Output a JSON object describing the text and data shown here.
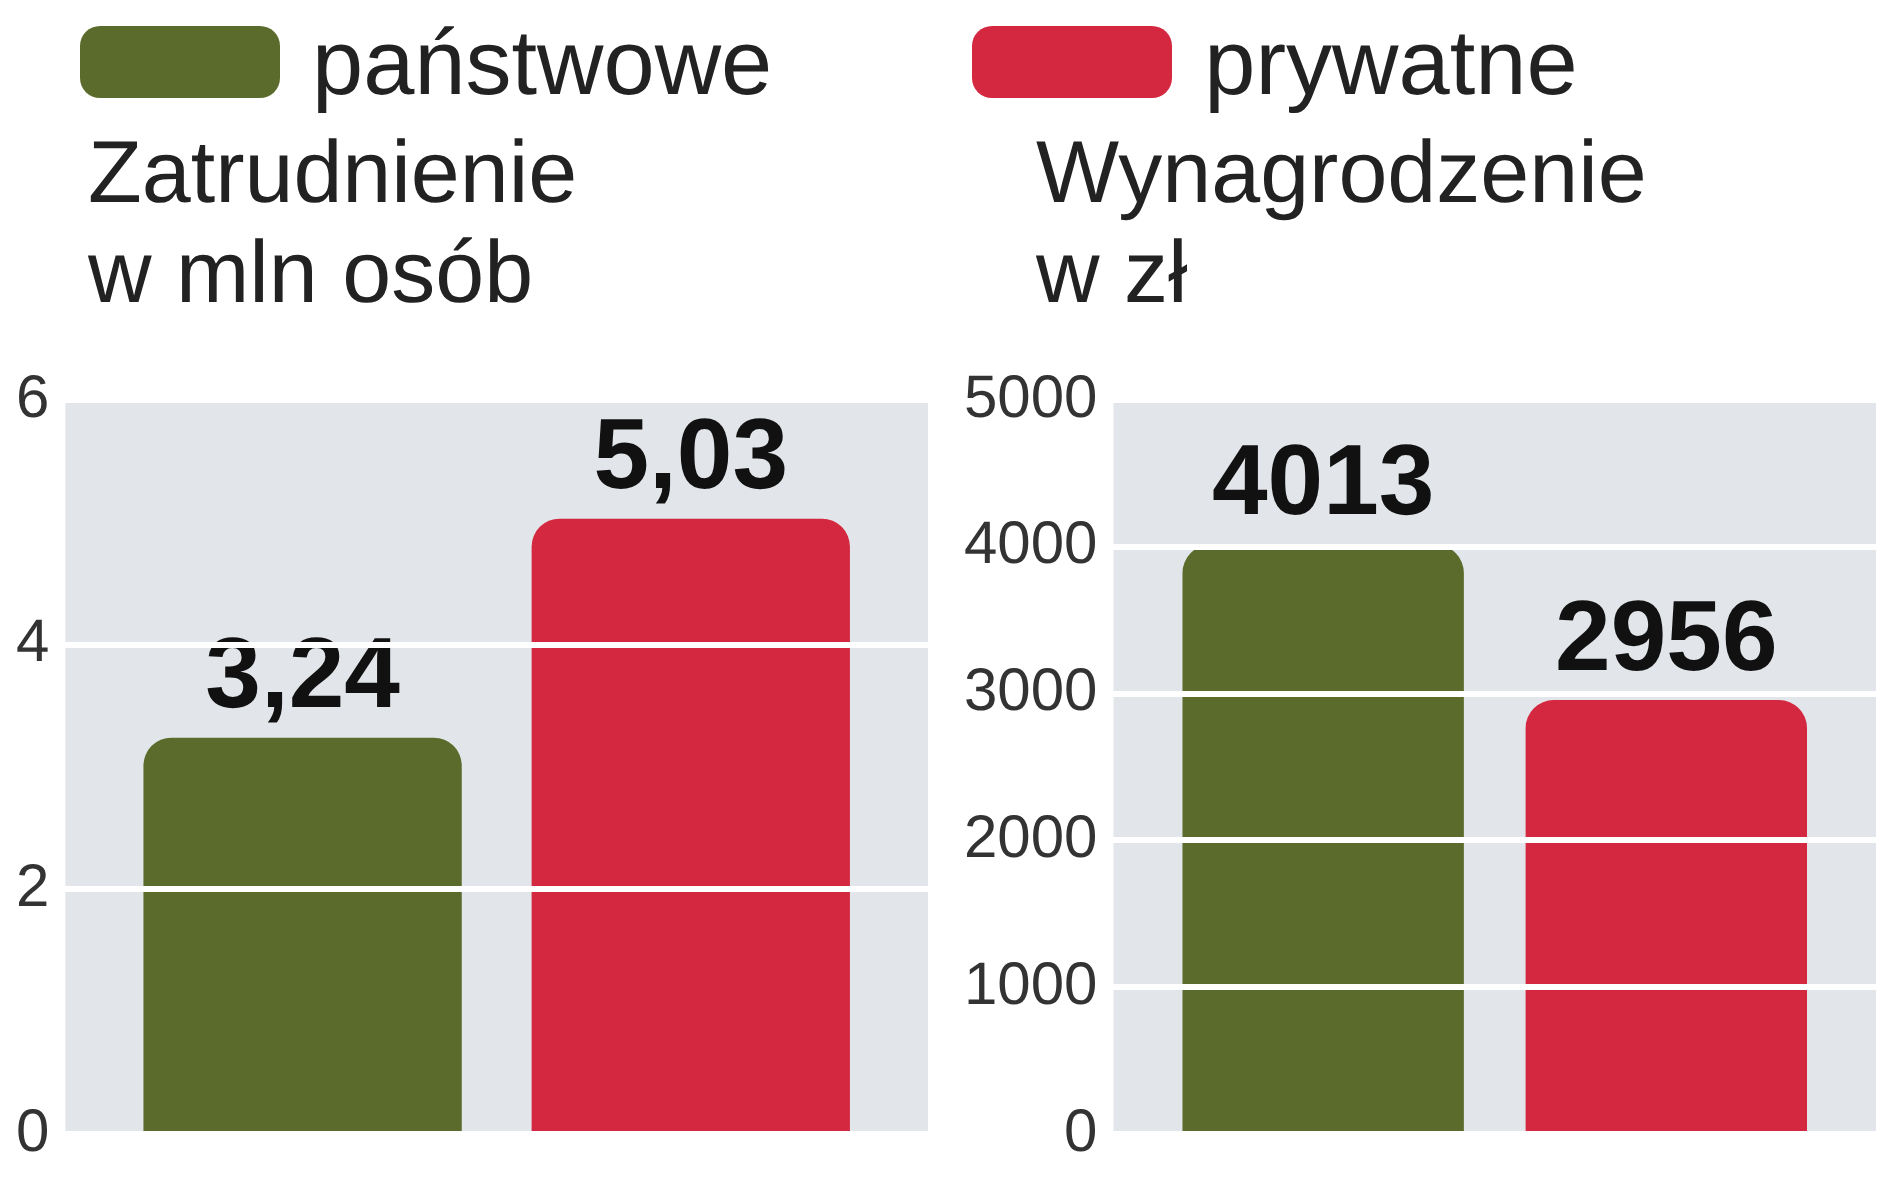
{
  "chart_data": [
    {
      "type": "bar",
      "title": "Zatrudnienie\nw mln osób",
      "categories": [
        null
      ],
      "legend": "top",
      "grid": "y",
      "ylim": [
        0,
        6
      ],
      "yticks": [
        0,
        2,
        4,
        6
      ],
      "series": [
        {
          "name": "państwowe",
          "color": "#5b6b2c",
          "values": [
            3.24
          ],
          "value_labels": [
            "3,24"
          ]
        },
        {
          "name": "prywatne",
          "color": "#d3283f",
          "values": [
            5.03
          ],
          "value_labels": [
            "5,03"
          ]
        }
      ]
    },
    {
      "type": "bar",
      "title": "Wynagrodzenie\nw zł",
      "categories": [
        null
      ],
      "grid": "y",
      "ylim": [
        0,
        5000
      ],
      "yticks": [
        0,
        1000,
        2000,
        3000,
        4000,
        5000
      ],
      "series": [
        {
          "color": "#5b6b2c",
          "values": [
            4013
          ],
          "value_labels": [
            "4013"
          ]
        },
        {
          "color": "#d3283f",
          "values": [
            2956
          ],
          "value_labels": [
            "2956"
          ]
        }
      ]
    }
  ]
}
